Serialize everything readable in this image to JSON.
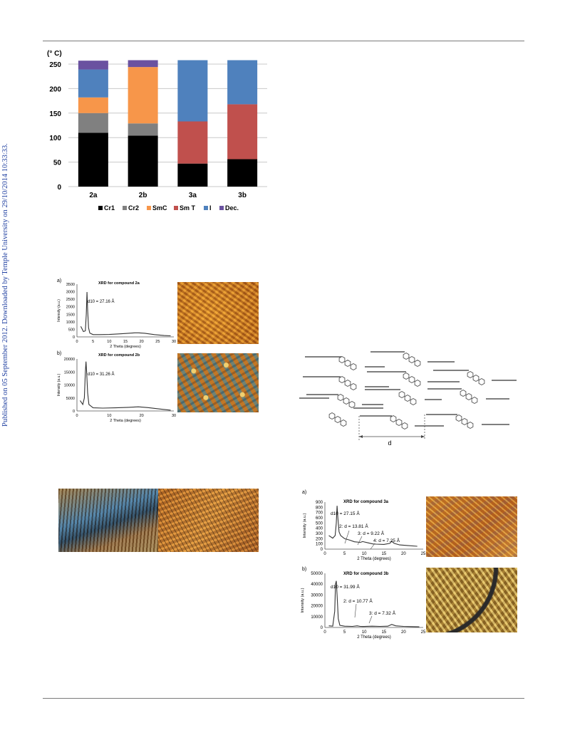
{
  "side_note": "Published on 05 September 2012. Downloaded by Temple University on 29/10/2014 10:33:33.",
  "colors": {
    "Cr1": "#000000",
    "Cr2": "#808080",
    "SmC": "#f7964a",
    "SmT": "#c0504d",
    "I": "#4f81bd",
    "Dec": "#6a52a0",
    "curve": "#333333",
    "link": "#1f3fa0"
  },
  "chart_data": [
    {
      "type": "bar",
      "subtype": "stacked",
      "ylabel": "(° C)",
      "ylim": [
        0,
        250
      ],
      "yticks": [
        0,
        50,
        100,
        150,
        200,
        250
      ],
      "categories": [
        "2a",
        "2b",
        "3a",
        "3b"
      ],
      "series": [
        {
          "name": "Cr1",
          "color": "#000000",
          "values": [
            110,
            104,
            47,
            56
          ]
        },
        {
          "name": "Cr2",
          "color": "#808080",
          "values": [
            40,
            25,
            0,
            0
          ]
        },
        {
          "name": "SmC",
          "color": "#f7964a",
          "values": [
            32,
            115,
            0,
            0
          ]
        },
        {
          "name": "Sm T",
          "color": "#c0504d",
          "values": [
            0,
            0,
            86,
            112
          ]
        },
        {
          "name": "I",
          "color": "#4f81bd",
          "values": [
            57,
            0,
            125,
            90
          ]
        },
        {
          "name": "Dec.",
          "color": "#6a52a0",
          "values": [
            18,
            14,
            0,
            0
          ]
        }
      ],
      "legend_position": "bottom",
      "grid": true
    },
    {
      "type": "line",
      "panel": "a)",
      "title": "XRD for compound 2a",
      "annotation": "d10 = 27.16 Å",
      "xlabel": "2 Theta (degrees)",
      "ylabel": "Intensity (a.u.)",
      "xlim": [
        0,
        30
      ],
      "ylim": [
        0,
        3500
      ],
      "xticks": [
        0,
        5,
        10,
        15,
        20,
        25,
        30
      ],
      "yticks": [
        0,
        500,
        1000,
        1500,
        2000,
        2500,
        3000,
        3500
      ],
      "x": [
        1.2,
        2.0,
        2.6,
        2.9,
        3.1,
        3.3,
        3.6,
        4.0,
        5,
        7,
        10,
        13,
        16,
        18,
        19,
        21,
        24,
        27,
        29
      ],
      "y": [
        700,
        350,
        400,
        1500,
        2980,
        1800,
        600,
        250,
        150,
        150,
        160,
        200,
        240,
        270,
        270,
        240,
        150,
        90,
        70
      ]
    },
    {
      "type": "line",
      "panel": "b)",
      "title": "XRD for compound 2b",
      "annotation": "d10 = 31.26 Å",
      "xlabel": "2 Theta (degrees)",
      "ylabel": "Intensity (a.u.)",
      "xlim": [
        0,
        30
      ],
      "ylim": [
        0,
        20000
      ],
      "xticks": [
        0,
        10,
        20,
        30
      ],
      "yticks": [
        0,
        5000,
        10000,
        15000,
        20000
      ],
      "x": [
        1.0,
        1.8,
        2.3,
        2.6,
        2.8,
        3.0,
        3.3,
        3.7,
        5,
        8,
        12,
        16,
        19,
        22,
        26,
        29
      ],
      "y": [
        4000,
        2500,
        5000,
        15000,
        19000,
        15000,
        7000,
        2500,
        1200,
        1100,
        1200,
        1400,
        1600,
        1300,
        700,
        300
      ]
    },
    {
      "type": "line",
      "panel": "a)",
      "title": "XRD for compound 3a",
      "annotations": [
        "d10 = 27.15 Å",
        "2: d = 13.81 Å",
        "3: d = 9.22 Å",
        "4: d = 7.25 Å"
      ],
      "xlabel": "2 Theta (degrees)",
      "ylabel": "Intensity (a.u.)",
      "xlim": [
        0,
        25
      ],
      "ylim": [
        0,
        900
      ],
      "xticks": [
        0,
        5,
        10,
        15,
        20,
        25
      ],
      "yticks": [
        0,
        100,
        200,
        300,
        400,
        500,
        600,
        700,
        800,
        900
      ],
      "x": [
        1.0,
        2.0,
        2.6,
        2.9,
        3.1,
        3.3,
        3.6,
        4.0,
        5.0,
        6.4,
        7.5,
        9.0,
        9.6,
        11,
        12.2,
        13,
        15,
        16.5,
        17,
        17.6,
        19,
        21,
        23.5
      ],
      "y": [
        260,
        210,
        260,
        500,
        830,
        600,
        330,
        260,
        200,
        170,
        140,
        130,
        145,
        120,
        100,
        95,
        90,
        110,
        150,
        110,
        80,
        70,
        55
      ]
    },
    {
      "type": "line",
      "panel": "b)",
      "title": "XRD for compound 3b",
      "annotations": [
        "d10 = 31.99 Å",
        "2: d = 10.77 Å",
        "3: d = 7.32 Å"
      ],
      "xlabel": "2 Theta (degrees)",
      "ylabel": "Intensity (a.u.)",
      "xlim": [
        0,
        25
      ],
      "ylim": [
        0,
        50000
      ],
      "xticks": [
        0,
        5,
        10,
        15,
        20,
        25
      ],
      "yticks": [
        0,
        10000,
        20000,
        30000,
        40000,
        50000
      ],
      "x": [
        1.0,
        2.0,
        2.5,
        2.7,
        2.9,
        3.1,
        3.4,
        3.8,
        5,
        7,
        8.2,
        9,
        10,
        12,
        14,
        16,
        17,
        18,
        20,
        22,
        24
      ],
      "y": [
        1500,
        1200,
        15000,
        40000,
        43000,
        30000,
        8000,
        2000,
        1200,
        1000,
        1500,
        1000,
        900,
        1200,
        1000,
        1200,
        2800,
        1500,
        1000,
        800,
        600
      ]
    }
  ],
  "schematic": {
    "d_label": "d"
  }
}
